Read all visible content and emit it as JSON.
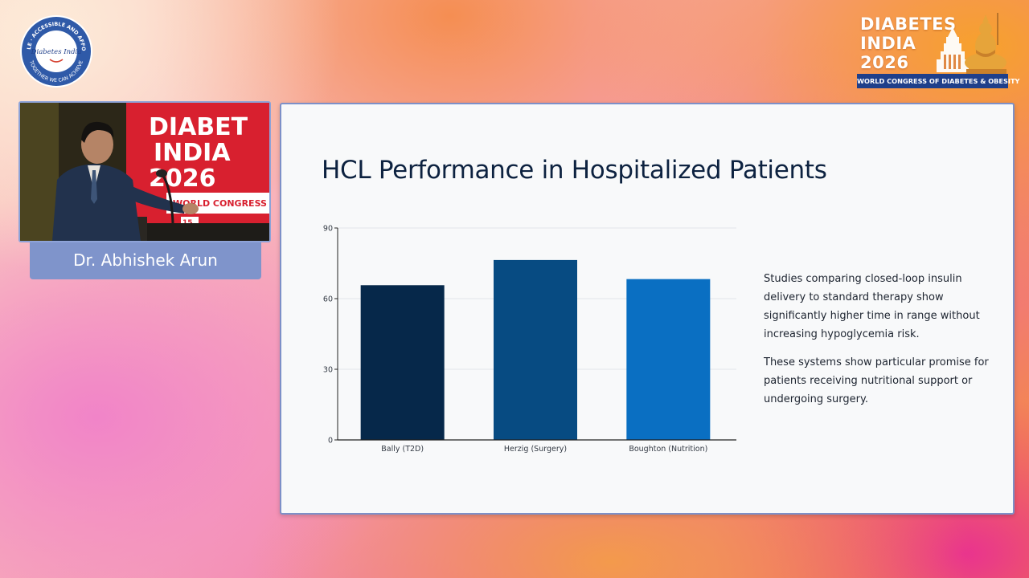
{
  "society_logo": {
    "ring_text": "AVAILABLE · ACCESSIBLE AND AFFORDABLE",
    "bottom_text": "TOGETHER WE CAN ACHIEVE",
    "center_text": "Diabetes India",
    "icon": "society-seal-icon"
  },
  "congress_logo": {
    "title_lines": [
      "DIABETES",
      "INDIA",
      "2026"
    ],
    "banner": "WORLD CONGRESS OF DIABETES & OBESITY",
    "icon": "temple-statue-icon"
  },
  "speaker": {
    "name": "Dr. Abhishek Arun"
  },
  "slide": {
    "title": "HCL Performance in Hospitalized Patients",
    "paragraphs": [
      "Studies comparing closed-loop insulin delivery to standard therapy show significantly higher time in range without increasing hypoglycemia risk.",
      "These systems show particular promise for patients receiving nutritional support or undergoing surgery."
    ]
  },
  "chart_data": {
    "type": "bar",
    "categories": [
      "Bally (T2D)",
      "Herzig (Surgery)",
      "Boughton (Nutrition)"
    ],
    "values": [
      65.7,
      76.4,
      68.3
    ],
    "colors": [
      "#06284a",
      "#074b82",
      "#0a6fc2"
    ],
    "ylim": [
      0,
      90
    ],
    "yticks": [
      0,
      30,
      60,
      90
    ],
    "grid": true
  }
}
